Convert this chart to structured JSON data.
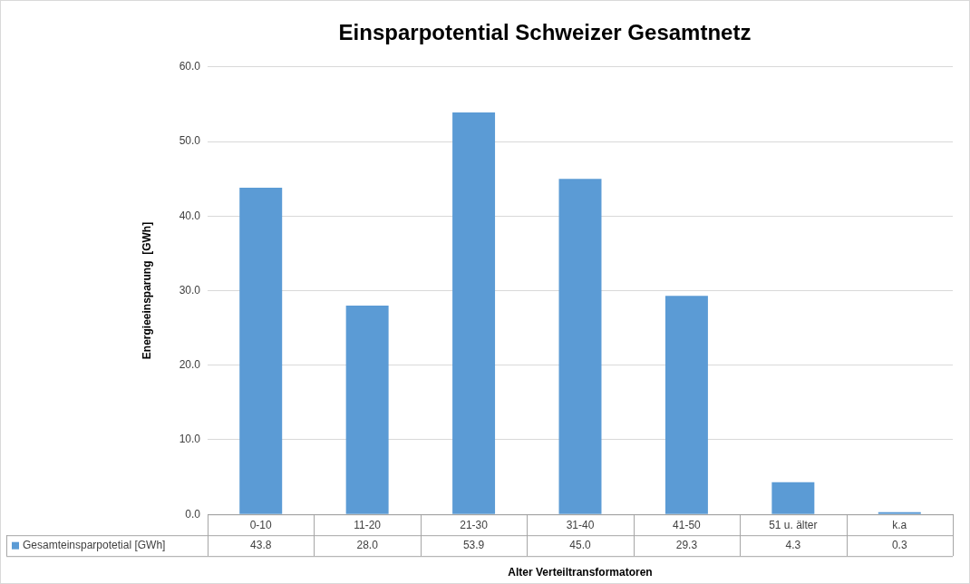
{
  "chart_data": {
    "type": "bar",
    "title": "Einsparpotential Schweizer Gesamtnetz",
    "xlabel": "Alter Verteiltransformatoren",
    "ylabel": "Energieeinsparung  [GWh]",
    "categories": [
      "0-10",
      "11-20",
      "21-30",
      "31-40",
      "41-50",
      "51 u. älter",
      "k.a"
    ],
    "series": [
      {
        "name": "Gesamteinsparpotetial [GWh]",
        "color": "#5b9bd5",
        "values": [
          43.8,
          28.0,
          53.9,
          45.0,
          29.3,
          4.3,
          0.3
        ],
        "value_labels": [
          "43.8",
          "28.0",
          "53.9",
          "45.0",
          "29.3",
          "4.3",
          "0.3"
        ]
      }
    ],
    "ylim": [
      0,
      60
    ],
    "yticks": [
      {
        "value": 0,
        "label": "0.0"
      },
      {
        "value": 10,
        "label": "10.0"
      },
      {
        "value": 20,
        "label": "20.0"
      },
      {
        "value": 30,
        "label": "30.0"
      },
      {
        "value": 40,
        "label": "40.0"
      },
      {
        "value": 50,
        "label": "50.0"
      },
      {
        "value": 60,
        "label": "60.0"
      }
    ],
    "grid": "y",
    "legend": "bottom left"
  }
}
